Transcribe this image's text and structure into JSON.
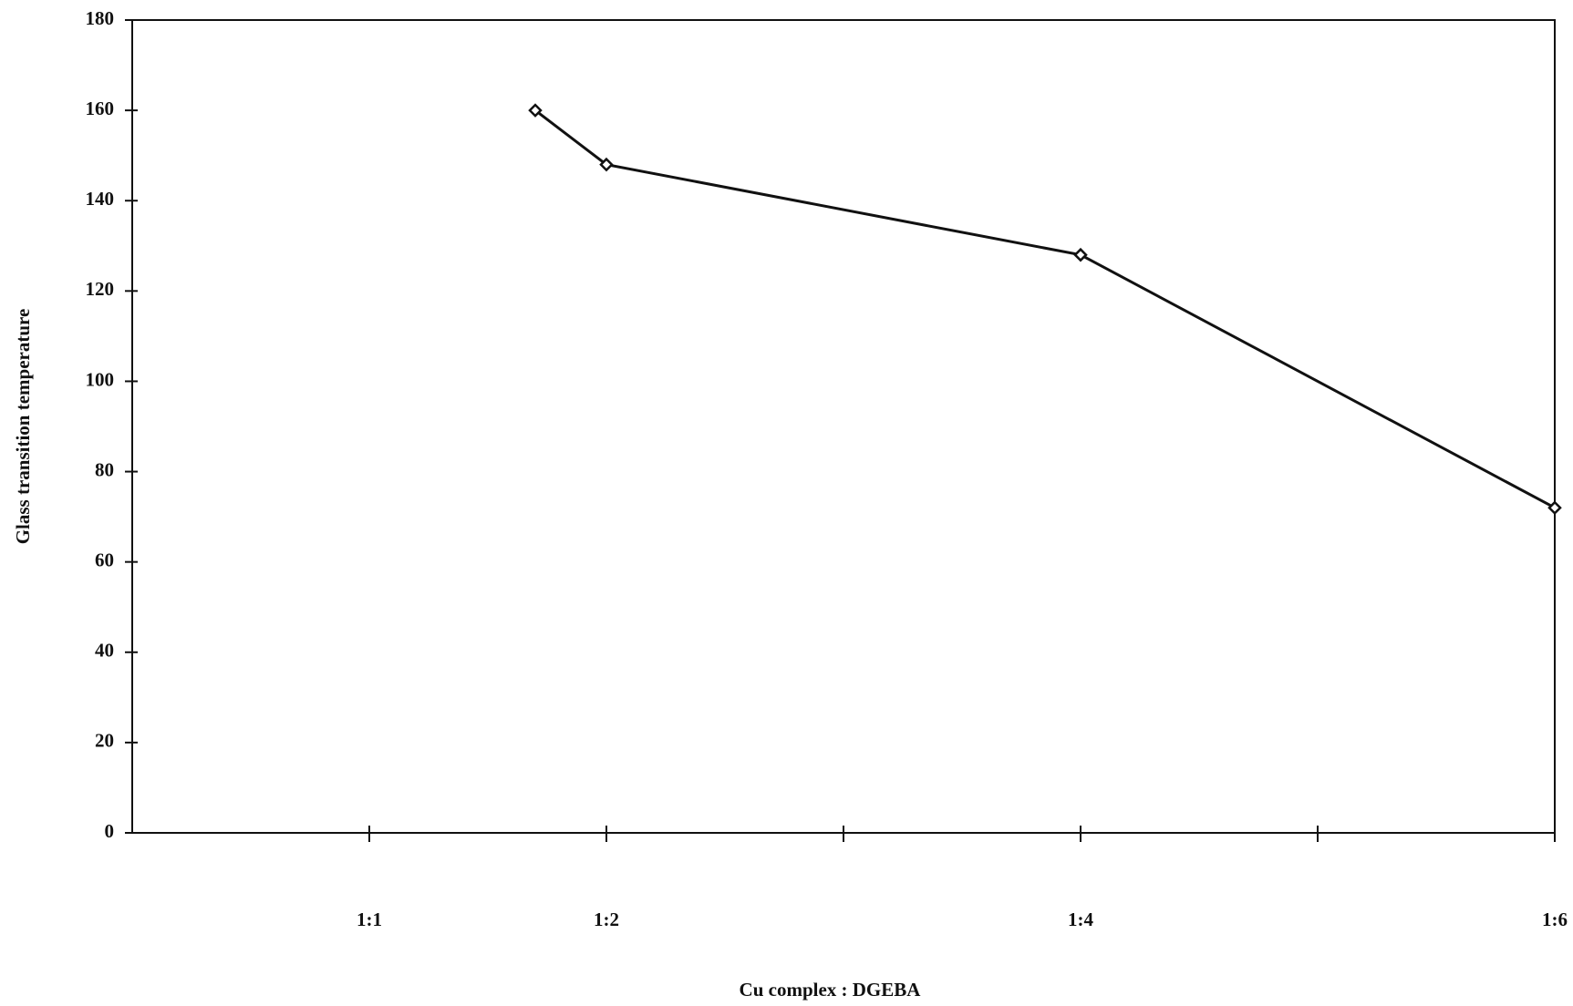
{
  "chart_data": {
    "type": "line",
    "x_label": "Cu complex : DGEBA",
    "y_label": "Glass transition temperature",
    "x": [
      1.7,
      2,
      4,
      6
    ],
    "values": [
      160,
      148,
      128,
      72
    ],
    "color": "#111111",
    "xlim": [
      0,
      6
    ],
    "xticks": [
      {
        "value": 1,
        "label": "1:1"
      },
      {
        "value": 2,
        "label": "1:2"
      },
      {
        "value": 3,
        "label": null
      },
      {
        "value": 4,
        "label": "1:4"
      },
      {
        "value": 5,
        "label": null
      },
      {
        "value": 6,
        "label": "1:6"
      }
    ],
    "ylim": [
      0,
      180
    ],
    "yticks": [
      0,
      20,
      40,
      60,
      80,
      100,
      120,
      140,
      160,
      180
    ]
  }
}
